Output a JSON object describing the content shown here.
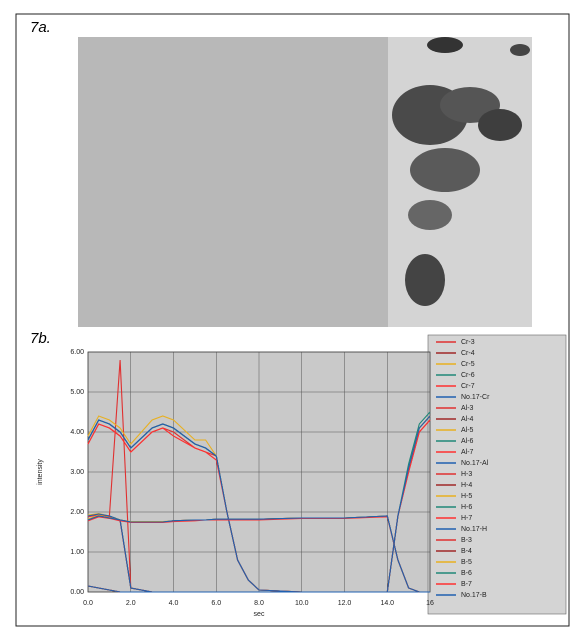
{
  "figure_labels": [
    "7a.",
    "7b."
  ],
  "chart_data": {
    "type": "line",
    "x_label": "sec",
    "y_label": "intensity",
    "x": [
      0,
      0.5,
      1,
      1.5,
      2,
      3,
      3.5,
      4,
      5,
      5.5,
      6,
      6.5,
      7,
      7.5,
      8,
      10,
      12,
      14,
      14.5,
      15,
      15.5,
      16
    ],
    "xlim": [
      0,
      16
    ],
    "ylim": [
      0,
      6
    ],
    "xticks": [
      {
        "value": 0,
        "label": "0.0"
      },
      {
        "value": 2,
        "label": "2.0"
      },
      {
        "value": 4,
        "label": "4.0"
      },
      {
        "value": 6,
        "label": "6.0"
      },
      {
        "value": 8,
        "label": "8.0"
      },
      {
        "value": 10,
        "label": "10.0"
      },
      {
        "value": 12,
        "label": "12.0"
      },
      {
        "value": 14,
        "label": "14.0"
      },
      {
        "value": 16,
        "label": "16"
      }
    ],
    "yticks": [
      {
        "value": 0,
        "label": "0.00"
      },
      {
        "value": 1,
        "label": "1.00"
      },
      {
        "value": 2,
        "label": "2.00"
      },
      {
        "value": 3,
        "label": "3.00"
      },
      {
        "value": 4,
        "label": "4.00"
      },
      {
        "value": 5,
        "label": "5.00"
      },
      {
        "value": 6,
        "label": "6.00"
      }
    ],
    "grid": true,
    "series": [
      {
        "name": "Cr-3",
        "color": "#e03030",
        "values": [
          1.9,
          1.95,
          1.9,
          5.8,
          0.1,
          0,
          0,
          0,
          0,
          0,
          0,
          0,
          0,
          0,
          0,
          0,
          0,
          0,
          0,
          0,
          0,
          0
        ]
      },
      {
        "name": "Cr-4",
        "color": "#a02828",
        "values": [
          1.9,
          1.95,
          1.9,
          1.8,
          0.1,
          0,
          0,
          0,
          0,
          0,
          0,
          0,
          0,
          0,
          0,
          0,
          0,
          0,
          0,
          0,
          0,
          0
        ]
      },
      {
        "name": "Cr-5",
        "color": "#e8b020",
        "values": [
          1.92,
          1.96,
          1.9,
          1.8,
          0.1,
          0,
          0,
          0,
          0,
          0,
          0,
          0,
          0,
          0,
          0,
          0,
          0,
          0,
          0,
          0,
          0,
          0
        ]
      },
      {
        "name": "Cr-6",
        "color": "#208878",
        "values": [
          1.9,
          1.94,
          1.9,
          1.8,
          0.1,
          0,
          0,
          0,
          0,
          0,
          0,
          0,
          0,
          0,
          0,
          0,
          0,
          0,
          0,
          0,
          0,
          0
        ]
      },
      {
        "name": "Cr-7",
        "color": "#ff3030",
        "values": [
          1.88,
          1.93,
          1.88,
          1.78,
          0.1,
          0,
          0,
          0,
          0,
          0,
          0,
          0,
          0,
          0,
          0,
          0,
          0,
          0,
          0,
          0,
          0,
          0
        ]
      },
      {
        "name": "No.17-Cr",
        "color": "#2060b0",
        "values": [
          1.9,
          1.95,
          1.9,
          1.8,
          0.1,
          0,
          0,
          0,
          0,
          0,
          0,
          0,
          0,
          0,
          0,
          0,
          0,
          0,
          0,
          0,
          0,
          0
        ]
      },
      {
        "name": "Al-3",
        "color": "#e03030",
        "values": [
          3.7,
          4.2,
          4.1,
          3.9,
          3.5,
          4.0,
          4.1,
          4.0,
          3.6,
          3.5,
          3.4,
          2.0,
          0.8,
          0.3,
          0.05,
          0,
          0,
          0,
          0,
          0,
          0,
          0
        ]
      },
      {
        "name": "Al-4",
        "color": "#a02828",
        "values": [
          3.8,
          4.3,
          4.2,
          4.0,
          3.6,
          4.1,
          4.2,
          4.1,
          3.7,
          3.6,
          3.4,
          2.0,
          0.8,
          0.3,
          0.05,
          0,
          0,
          0,
          0,
          0,
          0,
          0
        ]
      },
      {
        "name": "Al-5",
        "color": "#e8b020",
        "values": [
          3.9,
          4.4,
          4.3,
          4.1,
          3.7,
          4.3,
          4.4,
          4.3,
          3.8,
          3.8,
          3.4,
          2.0,
          0.8,
          0.3,
          0.05,
          0,
          0,
          0,
          0,
          0,
          0,
          0
        ]
      },
      {
        "name": "Al-6",
        "color": "#208878",
        "values": [
          3.8,
          4.3,
          4.2,
          4.0,
          3.6,
          4.1,
          4.2,
          4.1,
          3.7,
          3.6,
          3.4,
          2.0,
          0.8,
          0.3,
          0.05,
          0,
          0,
          0,
          0,
          0,
          0,
          0
        ]
      },
      {
        "name": "Al-7",
        "color": "#ff3030",
        "values": [
          3.7,
          4.2,
          4.1,
          3.9,
          3.5,
          4.0,
          4.1,
          3.9,
          3.6,
          3.5,
          3.3,
          2.0,
          0.8,
          0.3,
          0.05,
          0,
          0,
          0,
          0,
          0,
          0,
          0
        ]
      },
      {
        "name": "No.17-Al",
        "color": "#2060b0",
        "values": [
          3.8,
          4.3,
          4.2,
          4.0,
          3.6,
          4.1,
          4.2,
          4.1,
          3.7,
          3.6,
          3.4,
          2.0,
          0.8,
          0.3,
          0.05,
          0,
          0,
          0,
          0,
          0,
          0,
          0
        ]
      },
      {
        "name": "H-3",
        "color": "#e03030",
        "values": [
          1.8,
          1.9,
          1.85,
          1.8,
          1.75,
          1.75,
          1.75,
          1.78,
          1.8,
          1.8,
          1.82,
          1.82,
          1.82,
          1.82,
          1.82,
          1.85,
          1.85,
          1.9,
          0.8,
          0.1,
          0,
          0
        ]
      },
      {
        "name": "H-4",
        "color": "#a02828",
        "values": [
          1.8,
          1.9,
          1.85,
          1.8,
          1.75,
          1.75,
          1.75,
          1.78,
          1.8,
          1.8,
          1.82,
          1.82,
          1.82,
          1.82,
          1.82,
          1.85,
          1.85,
          1.9,
          0.8,
          0.1,
          0,
          0
        ]
      },
      {
        "name": "H-5",
        "color": "#e8b020",
        "values": [
          1.82,
          1.92,
          1.86,
          1.8,
          1.76,
          1.76,
          1.76,
          1.78,
          1.8,
          1.8,
          1.82,
          1.82,
          1.82,
          1.82,
          1.82,
          1.85,
          1.85,
          1.9,
          0.8,
          0.1,
          0,
          0
        ]
      },
      {
        "name": "H-6",
        "color": "#208878",
        "values": [
          1.8,
          1.9,
          1.85,
          1.8,
          1.75,
          1.75,
          1.75,
          1.78,
          1.8,
          1.8,
          1.82,
          1.82,
          1.82,
          1.82,
          1.82,
          1.85,
          1.85,
          1.9,
          0.8,
          0.1,
          0,
          0
        ]
      },
      {
        "name": "H-7",
        "color": "#ff3030",
        "values": [
          1.78,
          1.88,
          1.84,
          1.78,
          1.74,
          1.74,
          1.74,
          1.76,
          1.78,
          1.8,
          1.8,
          1.8,
          1.8,
          1.8,
          1.8,
          1.84,
          1.84,
          1.88,
          0.8,
          0.1,
          0,
          0
        ]
      },
      {
        "name": "No.17-H",
        "color": "#2060b0",
        "values": [
          1.8,
          1.9,
          1.85,
          1.8,
          1.75,
          1.75,
          1.75,
          1.78,
          1.8,
          1.8,
          1.82,
          1.82,
          1.82,
          1.82,
          1.82,
          1.85,
          1.85,
          1.9,
          0.8,
          0.1,
          0,
          0
        ]
      },
      {
        "name": "B-3",
        "color": "#e03030",
        "values": [
          0.15,
          0.1,
          0.05,
          0,
          0,
          0,
          0,
          0,
          0,
          0,
          0,
          0,
          0,
          0,
          0,
          0,
          0,
          0,
          1.9,
          3.0,
          4.0,
          4.3
        ]
      },
      {
        "name": "B-4",
        "color": "#a02828",
        "values": [
          0.15,
          0.1,
          0.05,
          0,
          0,
          0,
          0,
          0,
          0,
          0,
          0,
          0,
          0,
          0,
          0,
          0,
          0,
          0,
          1.9,
          3.1,
          4.1,
          4.4
        ]
      },
      {
        "name": "B-5",
        "color": "#e8b020",
        "values": [
          0.15,
          0.1,
          0.05,
          0,
          0,
          0,
          0,
          0,
          0,
          0,
          0,
          0,
          0,
          0,
          0,
          0,
          0,
          0,
          1.9,
          3.1,
          4.1,
          4.4
        ]
      },
      {
        "name": "B-6",
        "color": "#208878",
        "values": [
          0.15,
          0.1,
          0.05,
          0,
          0,
          0,
          0,
          0,
          0,
          0,
          0,
          0,
          0,
          0,
          0,
          0,
          0,
          0,
          1.9,
          3.2,
          4.2,
          4.5
        ]
      },
      {
        "name": "B-7",
        "color": "#ff3030",
        "values": [
          0.15,
          0.1,
          0.05,
          0,
          0,
          0,
          0,
          0,
          0,
          0,
          0,
          0,
          0,
          0,
          0,
          0,
          0,
          0,
          1.9,
          3.0,
          4.0,
          4.3
        ]
      },
      {
        "name": "No.17-B",
        "color": "#2060b0",
        "values": [
          0.15,
          0.1,
          0.05,
          0,
          0,
          0,
          0,
          0,
          0,
          0,
          0,
          0,
          0,
          0,
          0,
          0,
          0,
          0,
          1.9,
          3.1,
          4.1,
          4.4
        ]
      }
    ]
  }
}
